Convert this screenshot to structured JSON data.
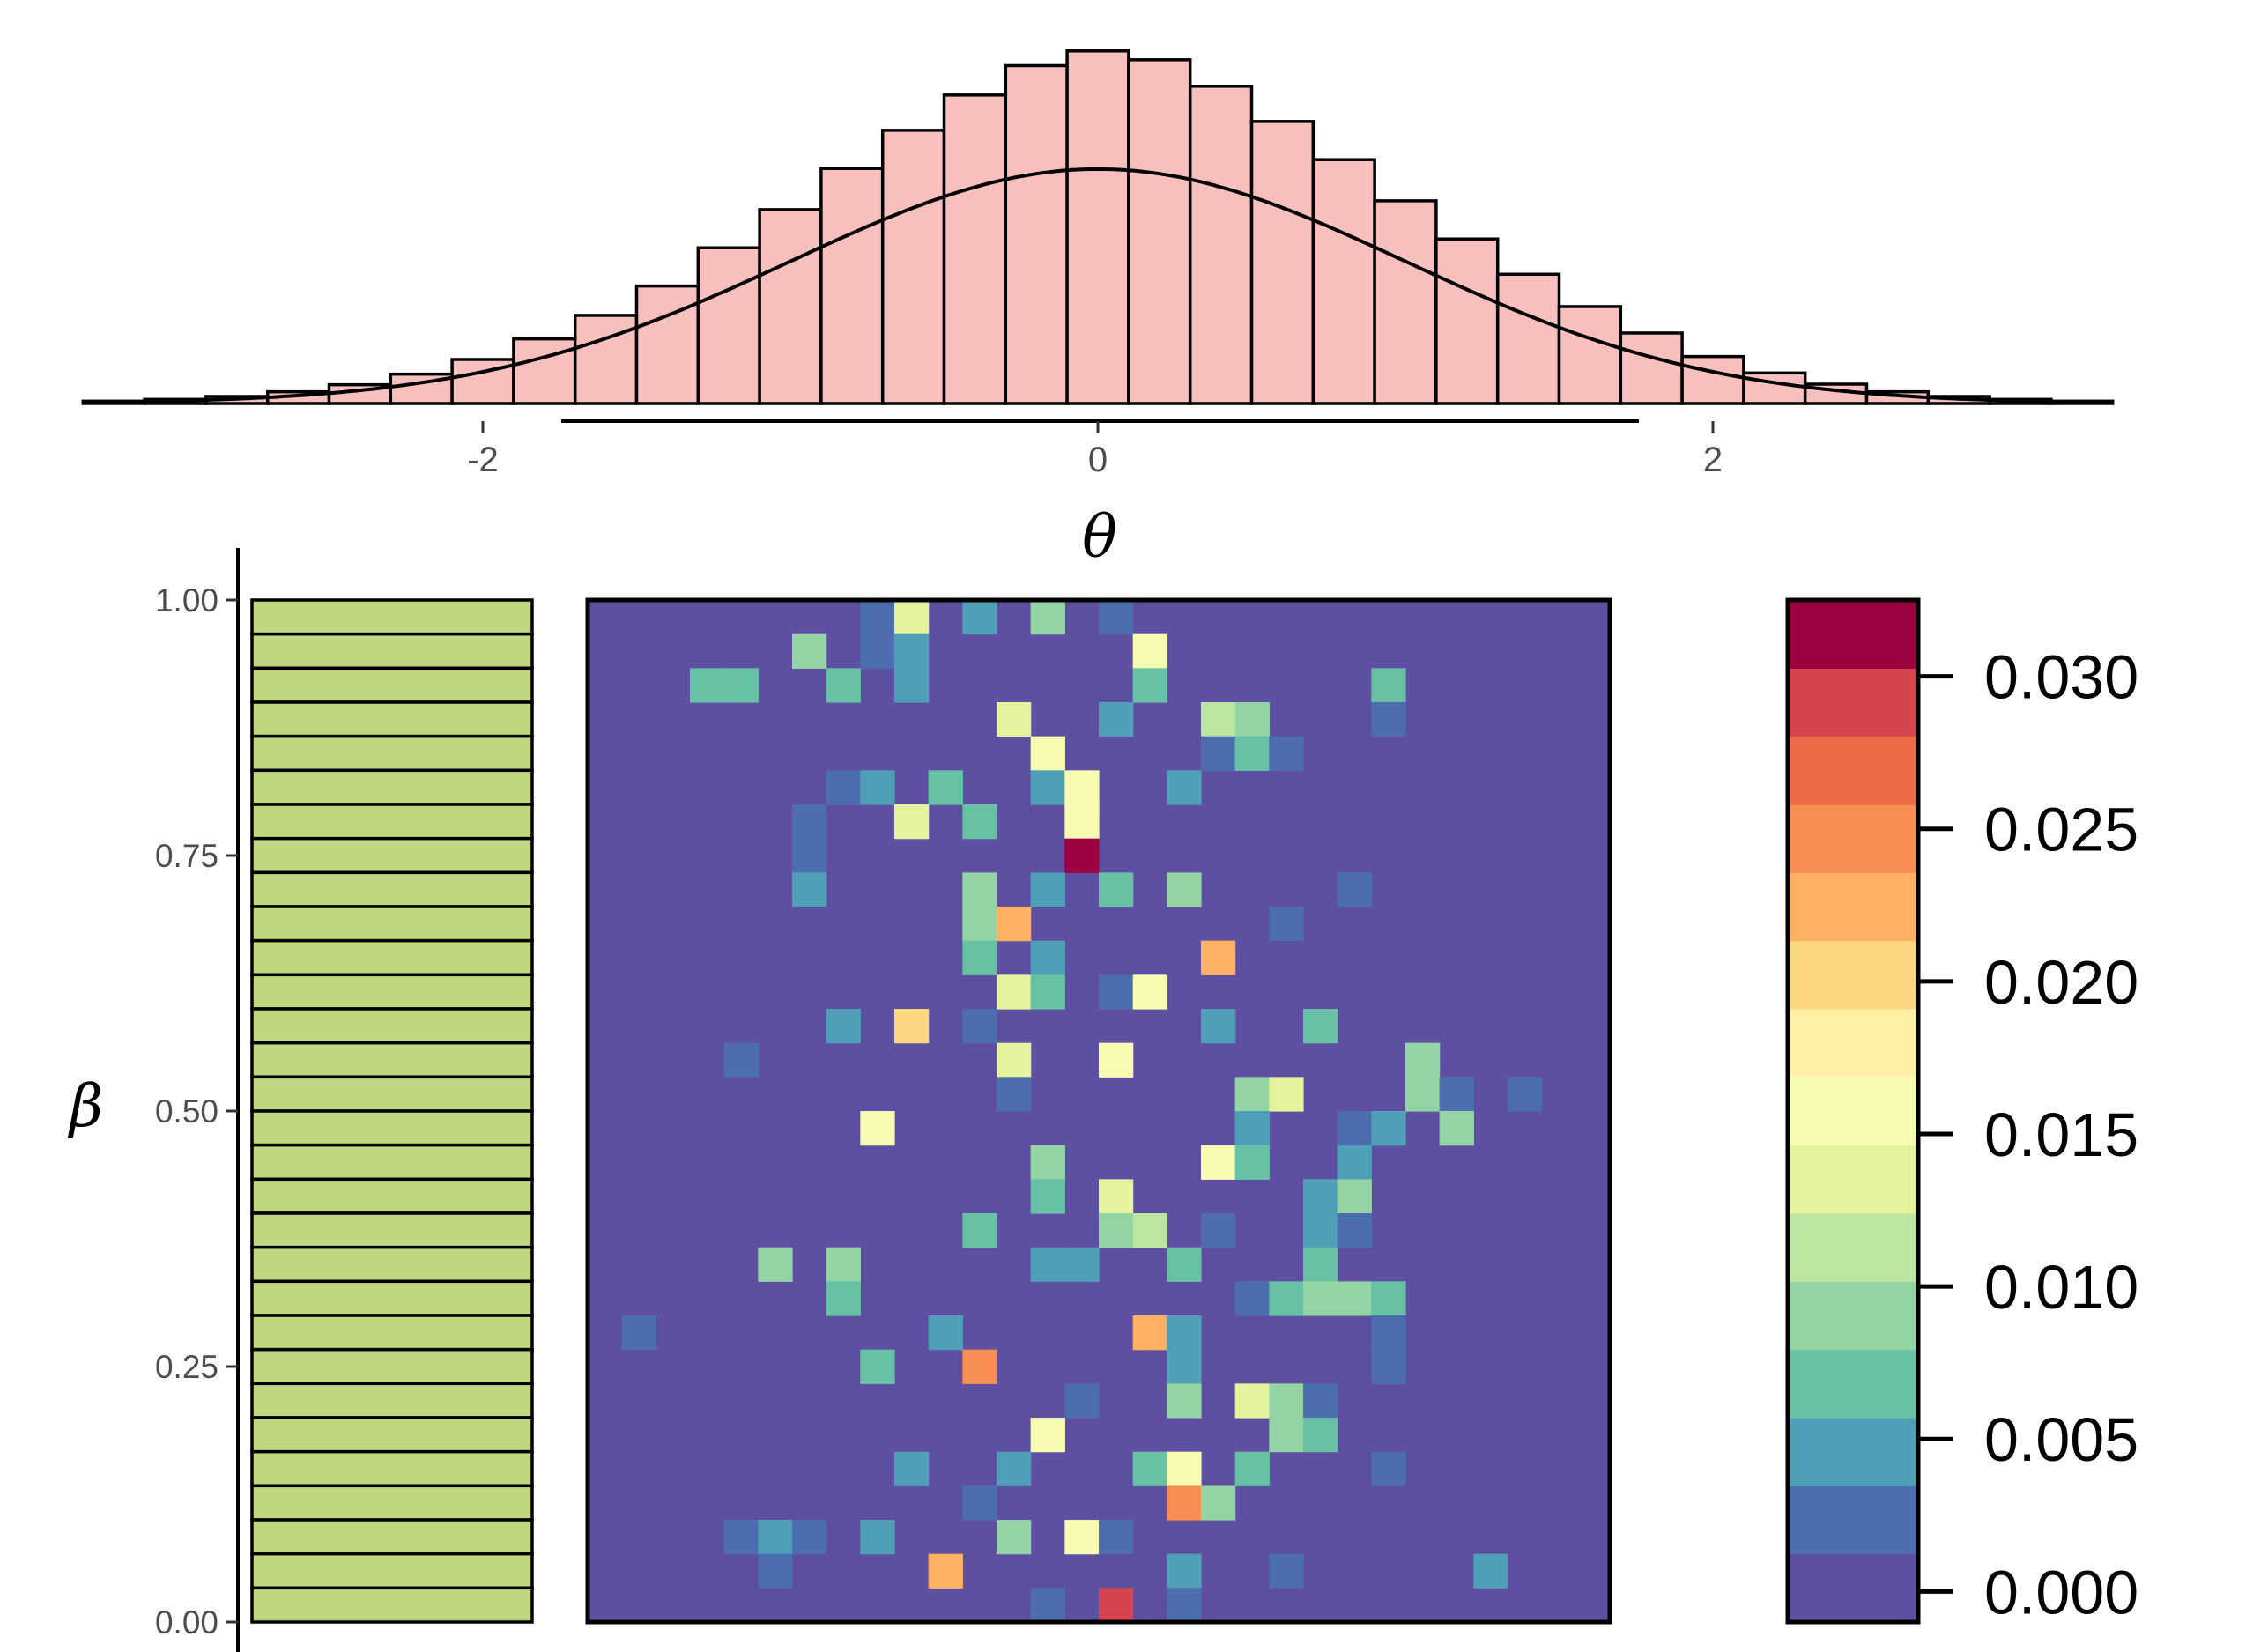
{
  "chart_data": [
    {
      "type": "bar",
      "name": "theta-marginal-histogram",
      "xlabel": "θ",
      "x_ticks": [
        "-2",
        "0",
        "2"
      ],
      "xlim": [
        -3.3,
        3.3
      ],
      "bin_width": 0.2,
      "bin_centers": [
        -3.2,
        -3.0,
        -2.8,
        -2.6,
        -2.4,
        -2.2,
        -2.0,
        -1.8,
        -1.6,
        -1.4,
        -1.2,
        -1.0,
        -0.8,
        -0.6,
        -0.4,
        -0.2,
        0.0,
        0.2,
        0.4,
        0.6,
        0.8,
        1.0,
        1.2,
        1.4,
        1.6,
        1.8,
        2.0,
        2.2,
        2.4,
        2.6,
        2.8,
        3.0,
        3.2
      ],
      "values": [
        0.004,
        0.007,
        0.012,
        0.02,
        0.032,
        0.05,
        0.075,
        0.11,
        0.15,
        0.2,
        0.265,
        0.33,
        0.4,
        0.465,
        0.525,
        0.575,
        0.6,
        0.585,
        0.54,
        0.48,
        0.415,
        0.345,
        0.28,
        0.22,
        0.165,
        0.12,
        0.08,
        0.052,
        0.033,
        0.02,
        0.012,
        0.007,
        0.004
      ],
      "overlay": "normal-density"
    },
    {
      "type": "bar",
      "name": "beta-marginal",
      "ylabel": "β",
      "y_ticks": [
        "0.00",
        "0.25",
        "0.50",
        "0.75",
        "1.00"
      ],
      "ylim": [
        0,
        1
      ],
      "n_bins": 30,
      "distribution": "uniform",
      "fill": "#bfd77f"
    },
    {
      "type": "heatmap",
      "name": "joint-heatmap",
      "n_cols": 30,
      "n_rows": 30,
      "background_value": 0.0,
      "cells": [
        [
          8,
          29,
          0.002
        ],
        [
          9,
          29,
          0.014
        ],
        [
          11,
          29,
          0.005
        ],
        [
          13,
          29,
          0.008
        ],
        [
          15,
          29,
          0.002
        ],
        [
          6,
          28,
          0.009
        ],
        [
          8,
          28,
          0.002
        ],
        [
          9,
          28,
          0.005
        ],
        [
          16,
          28,
          0.016
        ],
        [
          3,
          27,
          0.007
        ],
        [
          4,
          27,
          0.007
        ],
        [
          7,
          27,
          0.006
        ],
        [
          9,
          27,
          0.005
        ],
        [
          16,
          27,
          0.007
        ],
        [
          23,
          27,
          0.007
        ],
        [
          12,
          26,
          0.013
        ],
        [
          15,
          26,
          0.004
        ],
        [
          18,
          26,
          0.011
        ],
        [
          19,
          26,
          0.009
        ],
        [
          23,
          26,
          0.002
        ],
        [
          13,
          25,
          0.015
        ],
        [
          18,
          25,
          0.002
        ],
        [
          19,
          25,
          0.007
        ],
        [
          20,
          25,
          0.002
        ],
        [
          7,
          24,
          0.002
        ],
        [
          8,
          24,
          0.004
        ],
        [
          10,
          24,
          0.006
        ],
        [
          13,
          24,
          0.004
        ],
        [
          14,
          24,
          0.016
        ],
        [
          17,
          24,
          0.004
        ],
        [
          6,
          23,
          0.002
        ],
        [
          9,
          23,
          0.014
        ],
        [
          11,
          23,
          0.006
        ],
        [
          14,
          23,
          0.016
        ],
        [
          6,
          22,
          0.002
        ],
        [
          14,
          22,
          0.032
        ],
        [
          6,
          21,
          0.005
        ],
        [
          11,
          21,
          0.009
        ],
        [
          13,
          21,
          0.004
        ],
        [
          15,
          21,
          0.007
        ],
        [
          17,
          21,
          0.009
        ],
        [
          22,
          21,
          0.002
        ],
        [
          11,
          20,
          0.009
        ],
        [
          12,
          20,
          0.022
        ],
        [
          20,
          20,
          0.002
        ],
        [
          11,
          19,
          0.007
        ],
        [
          13,
          19,
          0.005
        ],
        [
          18,
          19,
          0.023
        ],
        [
          12,
          18,
          0.013
        ],
        [
          13,
          18,
          0.007
        ],
        [
          15,
          18,
          0.002
        ],
        [
          16,
          18,
          0.016
        ],
        [
          7,
          17,
          0.005
        ],
        [
          9,
          17,
          0.02
        ],
        [
          11,
          17,
          0.002
        ],
        [
          18,
          17,
          0.005
        ],
        [
          21,
          17,
          0.007
        ],
        [
          4,
          16,
          0.002
        ],
        [
          12,
          16,
          0.014
        ],
        [
          15,
          16,
          0.015
        ],
        [
          24,
          16,
          0.008
        ],
        [
          12,
          15,
          0.002
        ],
        [
          19,
          15,
          0.01
        ],
        [
          20,
          15,
          0.013
        ],
        [
          24,
          15,
          0.009
        ],
        [
          25,
          15,
          0.002
        ],
        [
          27,
          15,
          0.002
        ],
        [
          8,
          14,
          0.016
        ],
        [
          19,
          14,
          0.005
        ],
        [
          22,
          14,
          0.002
        ],
        [
          23,
          14,
          0.005
        ],
        [
          25,
          14,
          0.008
        ],
        [
          13,
          13,
          0.009
        ],
        [
          18,
          13,
          0.015
        ],
        [
          19,
          13,
          0.006
        ],
        [
          22,
          13,
          0.005
        ],
        [
          13,
          12,
          0.006
        ],
        [
          15,
          12,
          0.014
        ],
        [
          21,
          12,
          0.005
        ],
        [
          22,
          12,
          0.009
        ],
        [
          11,
          11,
          0.006
        ],
        [
          15,
          11,
          0.009
        ],
        [
          16,
          11,
          0.012
        ],
        [
          18,
          11,
          0.002
        ],
        [
          21,
          11,
          0.005
        ],
        [
          22,
          11,
          0.002
        ],
        [
          5,
          10,
          0.01
        ],
        [
          7,
          10,
          0.008
        ],
        [
          13,
          10,
          0.005
        ],
        [
          14,
          10,
          0.005
        ],
        [
          17,
          10,
          0.007
        ],
        [
          21,
          10,
          0.007
        ],
        [
          7,
          9,
          0.006
        ],
        [
          19,
          9,
          0.002
        ],
        [
          20,
          9,
          0.006
        ],
        [
          21,
          9,
          0.01
        ],
        [
          22,
          9,
          0.009
        ],
        [
          23,
          9,
          0.006
        ],
        [
          1,
          8,
          0.002
        ],
        [
          10,
          8,
          0.004
        ],
        [
          16,
          8,
          0.023
        ],
        [
          17,
          8,
          0.005
        ],
        [
          23,
          8,
          0.002
        ],
        [
          8,
          7,
          0.007
        ],
        [
          11,
          7,
          0.024
        ],
        [
          17,
          7,
          0.005
        ],
        [
          23,
          7,
          0.002
        ],
        [
          14,
          6,
          0.002
        ],
        [
          17,
          6,
          0.008
        ],
        [
          19,
          6,
          0.013
        ],
        [
          20,
          6,
          0.01
        ],
        [
          21,
          6,
          0.002
        ],
        [
          13,
          5,
          0.015
        ],
        [
          20,
          5,
          0.01
        ],
        [
          21,
          5,
          0.007
        ],
        [
          9,
          4,
          0.005
        ],
        [
          12,
          4,
          0.005
        ],
        [
          16,
          4,
          0.007
        ],
        [
          17,
          4,
          0.015
        ],
        [
          19,
          4,
          0.007
        ],
        [
          23,
          4,
          0.002
        ],
        [
          11,
          3,
          0.002
        ],
        [
          17,
          3,
          0.024
        ],
        [
          18,
          3,
          0.01
        ],
        [
          4,
          2,
          0.002
        ],
        [
          5,
          2,
          0.004
        ],
        [
          6,
          2,
          0.002
        ],
        [
          8,
          2,
          0.005
        ],
        [
          12,
          2,
          0.009
        ],
        [
          14,
          2,
          0.016
        ],
        [
          15,
          2,
          0.002
        ],
        [
          5,
          1,
          0.002
        ],
        [
          10,
          1,
          0.023
        ],
        [
          17,
          1,
          0.005
        ],
        [
          20,
          1,
          0.002
        ],
        [
          26,
          1,
          0.005
        ],
        [
          13,
          0,
          0.002
        ],
        [
          15,
          0,
          0.029
        ],
        [
          17,
          0,
          0.002
        ]
      ]
    },
    {
      "type": "colorbar",
      "name": "legend-colorbar",
      "range": [
        -0.001,
        0.0325
      ],
      "tick_values": [
        0.0,
        0.005,
        0.01,
        0.015,
        0.02,
        0.025,
        0.03
      ],
      "tick_labels": [
        "0.000",
        "0.005",
        "0.010",
        "0.015",
        "0.020",
        "0.025",
        "0.030"
      ],
      "n_bands": 15,
      "palette": [
        "#5e4fa2",
        "#4c6daf",
        "#4f9fb6",
        "#66c1a5",
        "#94d3a4",
        "#bde4a0",
        "#e3f49c",
        "#f8fbb2",
        "#fef1a6",
        "#fcd781",
        "#fdb163",
        "#f88e53",
        "#eb6b47",
        "#d6444d",
        "#9e0142"
      ]
    }
  ]
}
